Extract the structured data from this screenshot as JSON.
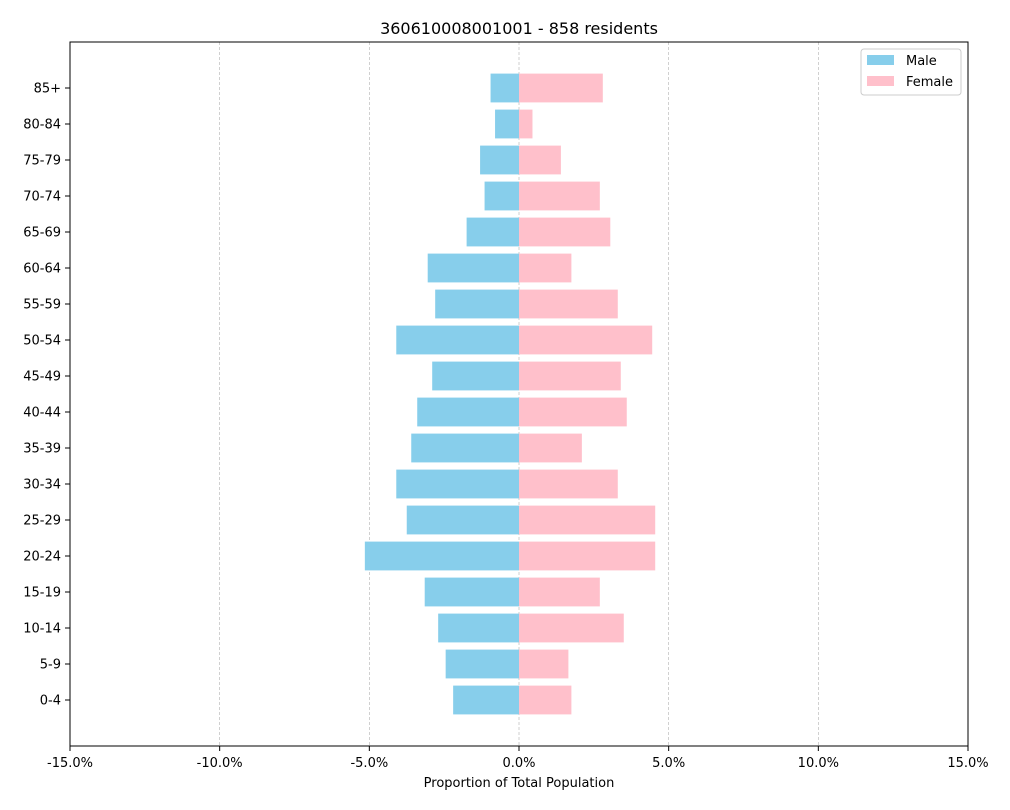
{
  "chart_data": {
    "type": "bar",
    "orientation": "horizontal",
    "title": "360610008001001 - 858 residents",
    "xlabel": "Proportion of Total Population",
    "ylabel": "",
    "xlim": [
      -15,
      15
    ],
    "x_ticks": [
      -15,
      -10,
      -5,
      0,
      5,
      10,
      15
    ],
    "x_tick_labels": [
      "-15.0%",
      "-10.0%",
      "-5.0%",
      "0.0%",
      "5.0%",
      "10.0%",
      "15.0%"
    ],
    "grid": "vertical dashed",
    "legend_position": "top-right",
    "categories": [
      "0-4",
      "5-9",
      "10-14",
      "15-19",
      "20-24",
      "25-29",
      "30-34",
      "35-39",
      "40-44",
      "45-49",
      "50-54",
      "55-59",
      "60-64",
      "65-69",
      "70-74",
      "75-79",
      "80-84",
      "85+"
    ],
    "series": [
      {
        "name": "Male",
        "color": "#87ceeb",
        "values": [
          -2.2,
          -2.45,
          -2.7,
          -3.15,
          -5.15,
          -3.75,
          -4.1,
          -3.6,
          -3.4,
          -2.9,
          -4.1,
          -2.8,
          -3.05,
          -1.75,
          -1.15,
          -1.3,
          -0.8,
          -0.95
        ]
      },
      {
        "name": "Female",
        "color": "#ffc0cb",
        "values": [
          1.75,
          1.65,
          3.5,
          2.7,
          4.55,
          4.55,
          3.3,
          2.1,
          3.6,
          3.4,
          4.45,
          3.3,
          1.75,
          3.05,
          2.7,
          1.4,
          0.45,
          2.8
        ]
      }
    ]
  }
}
